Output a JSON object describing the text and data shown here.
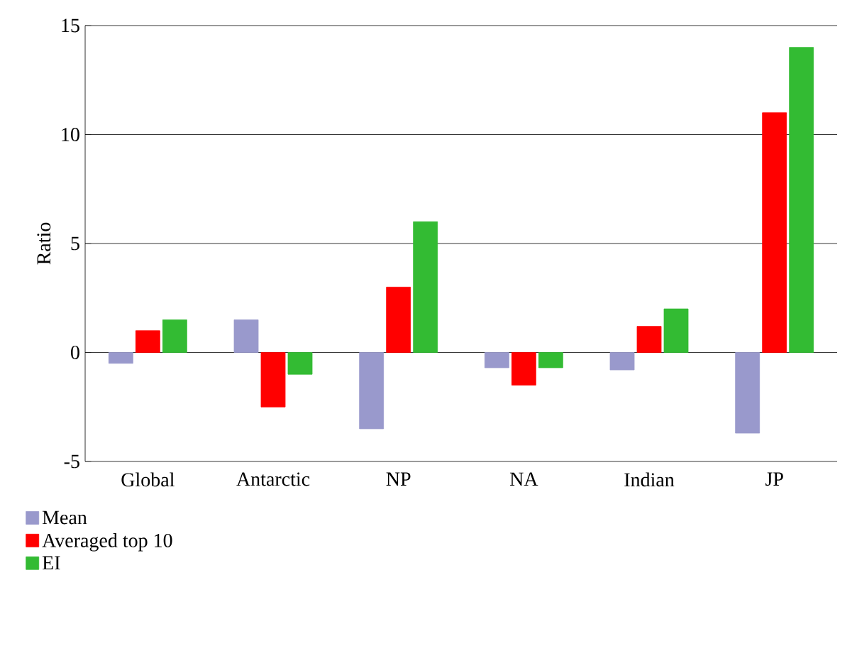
{
  "chart_data": {
    "type": "bar",
    "ylabel": "Ratio",
    "categories": [
      "Global",
      "Antarctic",
      "NP",
      "NA",
      "Indian",
      "JP"
    ],
    "series": [
      {
        "name": "Mean",
        "color": "#9999cc",
        "values": [
          -0.5,
          1.5,
          -3.5,
          -0.7,
          -0.8,
          -3.7
        ]
      },
      {
        "name": "Averaged top 10",
        "color": "#ff0000",
        "values": [
          1.0,
          -2.5,
          3.0,
          -1.5,
          1.2,
          11.0
        ]
      },
      {
        "name": "EI",
        "color": "#33bb33",
        "values": [
          1.5,
          -1.0,
          6.0,
          -0.7,
          2.0,
          14.0
        ]
      }
    ],
    "ylim": [
      -5,
      15
    ],
    "yticks": [
      -5,
      0,
      5,
      10,
      15
    ],
    "grid": "y",
    "legend": "bottom left"
  }
}
